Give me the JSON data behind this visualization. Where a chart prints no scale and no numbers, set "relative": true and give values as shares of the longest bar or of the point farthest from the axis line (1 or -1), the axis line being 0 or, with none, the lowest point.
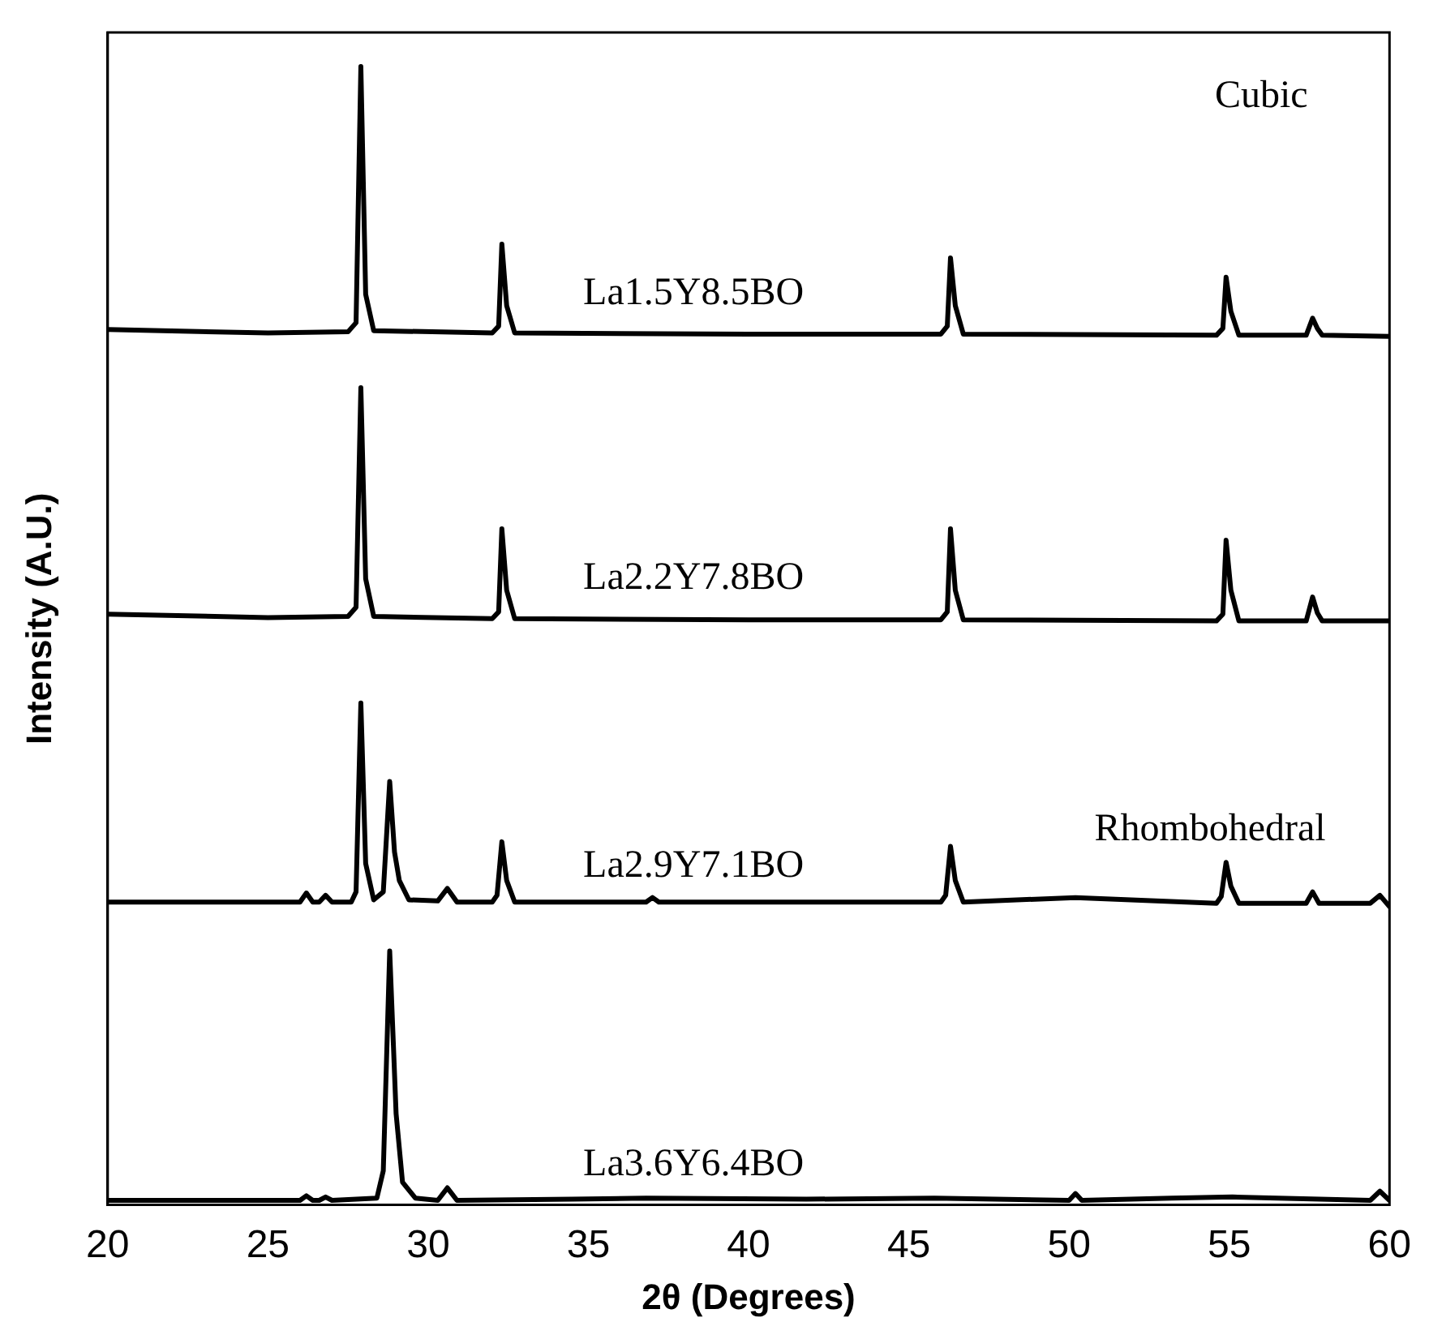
{
  "chart_data": {
    "type": "line",
    "relative": true,
    "xlabel": "2θ (Degrees)",
    "ylabel": "Intensity (A.U.)",
    "xlim": [
      20,
      60
    ],
    "xticks": [
      20,
      25,
      30,
      35,
      40,
      45,
      50,
      55,
      60
    ],
    "marker": "none",
    "line_style": "solid",
    "annotations": [
      "Cubic",
      "Rhombohedral"
    ],
    "series": [
      {
        "name": "La1.5Y8.5BO",
        "color": "#000000",
        "x": [
          20,
          25,
          27.5,
          27.75,
          27.9,
          28.05,
          28.3,
          32.0,
          32.2,
          32.3,
          32.45,
          32.7,
          40,
          46.0,
          46.2,
          46.3,
          46.45,
          46.7,
          54.6,
          54.8,
          54.9,
          55.05,
          55.3,
          57.4,
          57.6,
          57.75,
          57.9,
          60
        ],
        "values": [
          0.769,
          0.766,
          0.767,
          0.775,
          1.0,
          0.8,
          0.768,
          0.766,
          0.772,
          0.844,
          0.79,
          0.766,
          0.765,
          0.765,
          0.772,
          0.832,
          0.79,
          0.765,
          0.764,
          0.77,
          0.815,
          0.785,
          0.764,
          0.764,
          0.779,
          0.77,
          0.764,
          0.763
        ]
      },
      {
        "name": "La2.2Y7.8BO",
        "color": "#000000",
        "x": [
          20,
          25,
          27.5,
          27.75,
          27.9,
          28.05,
          28.3,
          32.0,
          32.2,
          32.3,
          32.45,
          32.7,
          40,
          46.0,
          46.2,
          46.3,
          46.45,
          46.7,
          54.6,
          54.8,
          54.9,
          55.05,
          55.3,
          57.4,
          57.6,
          57.75,
          57.9,
          60
        ],
        "values": [
          0.519,
          0.516,
          0.517,
          0.525,
          0.718,
          0.55,
          0.517,
          0.515,
          0.521,
          0.594,
          0.54,
          0.515,
          0.514,
          0.514,
          0.521,
          0.594,
          0.54,
          0.514,
          0.513,
          0.519,
          0.584,
          0.54,
          0.513,
          0.513,
          0.534,
          0.52,
          0.513,
          0.513
        ]
      },
      {
        "name": "La2.9Y7.1BO",
        "color": "#000000",
        "x": [
          20,
          26.0,
          26.2,
          26.4,
          26.6,
          26.8,
          27.0,
          27.6,
          27.75,
          27.9,
          28.05,
          28.3,
          28.6,
          28.8,
          28.95,
          29.1,
          29.4,
          30.3,
          30.6,
          30.9,
          32.0,
          32.15,
          32.3,
          32.45,
          32.7,
          36.8,
          37,
          37.2,
          41.8,
          46.0,
          46.15,
          46.3,
          46.45,
          46.7,
          50.2,
          54.6,
          54.75,
          54.9,
          55.05,
          55.3,
          57.4,
          57.6,
          57.8,
          59.4,
          59.7,
          60
        ],
        "values": [
          0.266,
          0.266,
          0.274,
          0.266,
          0.266,
          0.272,
          0.266,
          0.266,
          0.275,
          0.441,
          0.3,
          0.268,
          0.275,
          0.372,
          0.31,
          0.285,
          0.268,
          0.267,
          0.278,
          0.266,
          0.266,
          0.272,
          0.319,
          0.285,
          0.266,
          0.266,
          0.27,
          0.266,
          0.266,
          0.266,
          0.272,
          0.315,
          0.285,
          0.266,
          0.27,
          0.265,
          0.271,
          0.301,
          0.28,
          0.265,
          0.265,
          0.275,
          0.265,
          0.265,
          0.272,
          0.262
        ]
      },
      {
        "name": "La3.6Y6.4BO",
        "color": "#000000",
        "x": [
          20,
          26.0,
          26.2,
          26.4,
          26.6,
          26.8,
          27.0,
          28.4,
          28.6,
          28.8,
          29.0,
          29.2,
          29.6,
          30.3,
          30.6,
          30.9,
          34.5,
          36.8,
          41.8,
          45.8,
          50.0,
          50.2,
          50.4,
          53.2,
          55.1,
          59.4,
          59.7,
          60
        ],
        "values": [
          0.004,
          0.004,
          0.008,
          0.004,
          0.004,
          0.007,
          0.004,
          0.006,
          0.03,
          0.223,
          0.08,
          0.02,
          0.006,
          0.004,
          0.015,
          0.004,
          0.005,
          0.006,
          0.005,
          0.006,
          0.004,
          0.01,
          0.004,
          0.006,
          0.007,
          0.004,
          0.012,
          0.004
        ]
      }
    ]
  }
}
